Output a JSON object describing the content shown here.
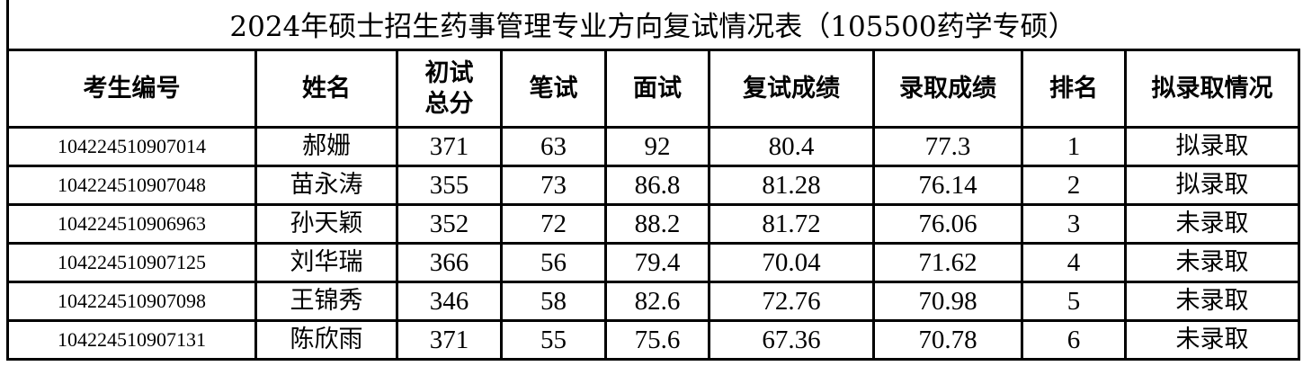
{
  "title": "2024年硕士招生药事管理专业方向复试情况表（105500药学专硕）",
  "headers": [
    "考生编号",
    "姓名",
    "初试\n总分",
    "笔试",
    "面试",
    "复试成绩",
    "录取成绩",
    "排名",
    "拟录取情况"
  ],
  "header_initial_line1": "初试",
  "header_initial_line2": "总分",
  "rows": [
    [
      "104224510907014",
      "郝姗",
      "371",
      "63",
      "92",
      "80.4",
      "77.3",
      "1",
      "拟录取"
    ],
    [
      "104224510907048",
      "苗永涛",
      "355",
      "73",
      "86.8",
      "81.28",
      "76.14",
      "2",
      "拟录取"
    ],
    [
      "104224510906963",
      "孙天颖",
      "352",
      "72",
      "88.2",
      "81.72",
      "76.06",
      "3",
      "未录取"
    ],
    [
      "104224510907125",
      "刘华瑞",
      "366",
      "56",
      "79.4",
      "70.04",
      "71.62",
      "4",
      "未录取"
    ],
    [
      "104224510907098",
      "王锦秀",
      "346",
      "58",
      "82.6",
      "72.76",
      "70.98",
      "5",
      "未录取"
    ],
    [
      "104224510907131",
      "陈欣雨",
      "371",
      "55",
      "75.6",
      "67.36",
      "70.78",
      "6",
      "未录取"
    ]
  ]
}
